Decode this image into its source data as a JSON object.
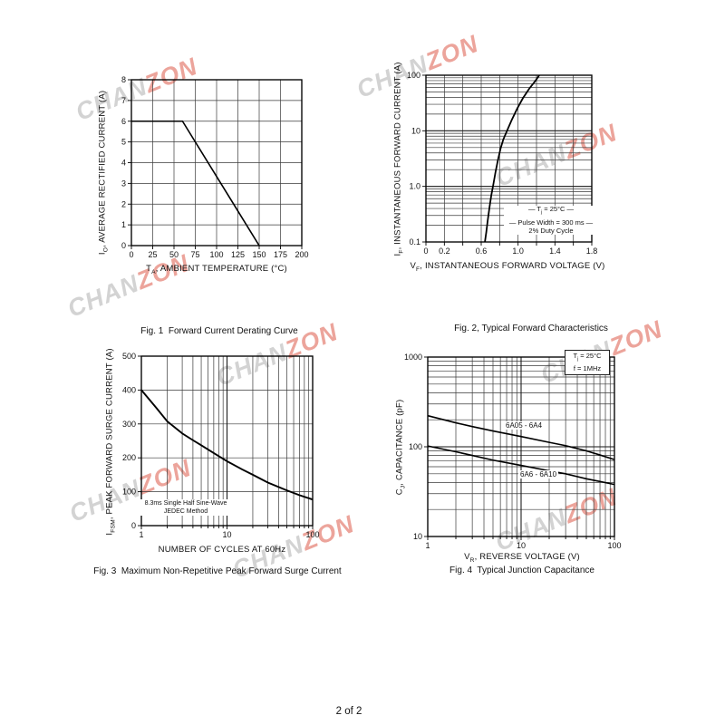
{
  "page": {
    "number_label": "2 of 2"
  },
  "watermark": {
    "part1": "CHAN",
    "part2": "ZON",
    "gray_color": "#d3d3d3",
    "red_color": "#eca49b"
  },
  "chart_data": [
    {
      "type": "line",
      "caption": "Fig. 1  Forward Current Derating Curve",
      "xlabel": "T_{A}, AMBIENT TEMPERATURE (°C)",
      "ylabel": "I_{O}, AVERAGE RECTIFIED CURRENT (A)",
      "x_axis": {
        "scale": "linear",
        "min": 0,
        "max": 200,
        "grid_step": 25,
        "ticks": [
          {
            "v": 0,
            "t": "0"
          },
          {
            "v": 25,
            "t": "25"
          },
          {
            "v": 50,
            "t": "50"
          },
          {
            "v": 75,
            "t": "75"
          },
          {
            "v": 100,
            "t": "100"
          },
          {
            "v": 125,
            "t": "125"
          },
          {
            "v": 150,
            "t": "150"
          },
          {
            "v": 175,
            "t": "175"
          },
          {
            "v": 200,
            "t": "200"
          }
        ]
      },
      "y_axis": {
        "scale": "linear",
        "min": 0,
        "max": 8,
        "grid_step": 1,
        "ticks": [
          {
            "v": 8,
            "t": "8"
          },
          {
            "v": 7,
            "t": "7"
          },
          {
            "v": 6,
            "t": "6"
          },
          {
            "v": 5,
            "t": "5"
          },
          {
            "v": 4,
            "t": "4"
          },
          {
            "v": 3,
            "t": "3"
          },
          {
            "v": 2,
            "t": "2"
          },
          {
            "v": 1,
            "t": "1"
          },
          {
            "v": 0,
            "t": "0"
          }
        ]
      },
      "series": [
        {
          "name": "derating-curve",
          "points": [
            [
              0,
              6
            ],
            [
              60,
              6
            ],
            [
              150,
              0
            ]
          ]
        }
      ]
    },
    {
      "type": "line",
      "caption": "Fig. 2, Typical Forward Characteristics",
      "xlabel": "V_{F}, INSTANTANEOUS FORWARD VOLTAGE (V)",
      "ylabel": "I_{F}, INSTANTANEOUS FORWARD CURRENT (A)",
      "x_axis": {
        "scale": "linear",
        "min": 0,
        "max": 1.8,
        "grid_step": 0.2,
        "ticks": [
          {
            "v": 0,
            "t": "0"
          },
          {
            "v": 0.2,
            "t": "0.2"
          },
          {
            "v": 0.6,
            "t": "0.6"
          },
          {
            "v": 1.0,
            "t": "1.0"
          },
          {
            "v": 1.4,
            "t": "1.4"
          },
          {
            "v": 1.8,
            "t": "1.8"
          }
        ]
      },
      "y_axis": {
        "scale": "log",
        "min": 0.1,
        "max": 100,
        "ticks": [
          {
            "v": 100,
            "t": "100"
          },
          {
            "v": 10,
            "t": "10"
          },
          {
            "v": 1,
            "t": "1.0"
          },
          {
            "v": 0.1,
            "t": "0.1"
          }
        ]
      },
      "annotation": {
        "lines": [
          "— T_{j} = 25°C —",
          "— Pulse Width = 300 ms —",
          "2% Duty Cycle"
        ]
      },
      "series": [
        {
          "name": "forward-characteristic",
          "points": [
            [
              0.64,
              0.1
            ],
            [
              0.655,
              0.15
            ],
            [
              0.67,
              0.24
            ],
            [
              0.69,
              0.42
            ],
            [
              0.71,
              0.7
            ],
            [
              0.73,
              1.05
            ],
            [
              0.755,
              1.8
            ],
            [
              0.78,
              2.9
            ],
            [
              0.81,
              4.8
            ],
            [
              0.84,
              7.0
            ],
            [
              0.88,
              10
            ],
            [
              0.93,
              15.5
            ],
            [
              0.99,
              25
            ],
            [
              1.05,
              38
            ],
            [
              1.12,
              57
            ],
            [
              1.19,
              80
            ],
            [
              1.23,
              100
            ]
          ]
        }
      ]
    },
    {
      "type": "line",
      "caption": "Fig. 3  Maximum Non-Repetitive Peak Forward Surge Current",
      "xlabel": "NUMBER OF CYCLES AT 60Hz",
      "ylabel": "I_{FSM}, PEAK FORWARD SURGE CURRENT (A)",
      "x_axis": {
        "scale": "log",
        "min": 1,
        "max": 100,
        "ticks": [
          {
            "v": 1,
            "t": "1"
          },
          {
            "v": 10,
            "t": "10"
          },
          {
            "v": 100,
            "t": "100"
          }
        ]
      },
      "y_axis": {
        "scale": "linear",
        "min": 0,
        "max": 500,
        "grid_step": 100,
        "ticks": [
          {
            "v": 500,
            "t": "500"
          },
          {
            "v": 400,
            "t": "400"
          },
          {
            "v": 300,
            "t": "300"
          },
          {
            "v": 200,
            "t": "200"
          },
          {
            "v": 100,
            "t": "100"
          },
          {
            "v": 0,
            "t": "0"
          }
        ]
      },
      "annotation": {
        "lines": [
          "8.3ms Single Half Sine-Wave",
          "JEDEC Method"
        ]
      },
      "series": [
        {
          "name": "surge-current",
          "points": [
            [
              1,
              400
            ],
            [
              1.5,
              347
            ],
            [
              2,
              308
            ],
            [
              3,
              272
            ],
            [
              4,
              252
            ],
            [
              5,
              237
            ],
            [
              7,
              214
            ],
            [
              10,
              190
            ],
            [
              15,
              166
            ],
            [
              20,
              150
            ],
            [
              30,
              127
            ],
            [
              50,
              104
            ],
            [
              70,
              90
            ],
            [
              100,
              77
            ]
          ]
        }
      ]
    },
    {
      "type": "line",
      "caption": "Fig. 4  Typical Junction Capacitance",
      "xlabel": "V_{R}, REVERSE VOLTAGE (V)",
      "ylabel": "C_{J}, CAPACITANCE (pF)",
      "x_axis": {
        "scale": "log",
        "min": 1,
        "max": 100,
        "ticks": [
          {
            "v": 1,
            "t": "1"
          },
          {
            "v": 10,
            "t": "10"
          },
          {
            "v": 100,
            "t": "100"
          }
        ]
      },
      "y_axis": {
        "scale": "log",
        "min": 10,
        "max": 1000,
        "ticks": [
          {
            "v": 1000,
            "t": "1000"
          },
          {
            "v": 100,
            "t": "100"
          },
          {
            "v": 10,
            "t": "10"
          }
        ]
      },
      "annotation": {
        "lines": [
          "T_{j} = 25°C",
          "f = 1MHz"
        ]
      },
      "series": [
        {
          "name": "6A05-6A4",
          "label": "6A05 - 6A4",
          "points": [
            [
              1,
              222
            ],
            [
              2,
              185
            ],
            [
              3,
              168
            ],
            [
              5,
              150
            ],
            [
              10,
              130
            ],
            [
              20,
              112
            ],
            [
              30,
              103
            ],
            [
              50,
              90
            ],
            [
              70,
              81
            ],
            [
              100,
              72
            ]
          ]
        },
        {
          "name": "6A6-6A10",
          "label": "6A6 - 6A10",
          "points": [
            [
              1,
              102
            ],
            [
              2,
              88
            ],
            [
              3,
              80
            ],
            [
              5,
              71
            ],
            [
              10,
              62
            ],
            [
              20,
              54
            ],
            [
              30,
              50
            ],
            [
              50,
              44
            ],
            [
              70,
              41
            ],
            [
              100,
              38
            ]
          ]
        }
      ]
    }
  ]
}
